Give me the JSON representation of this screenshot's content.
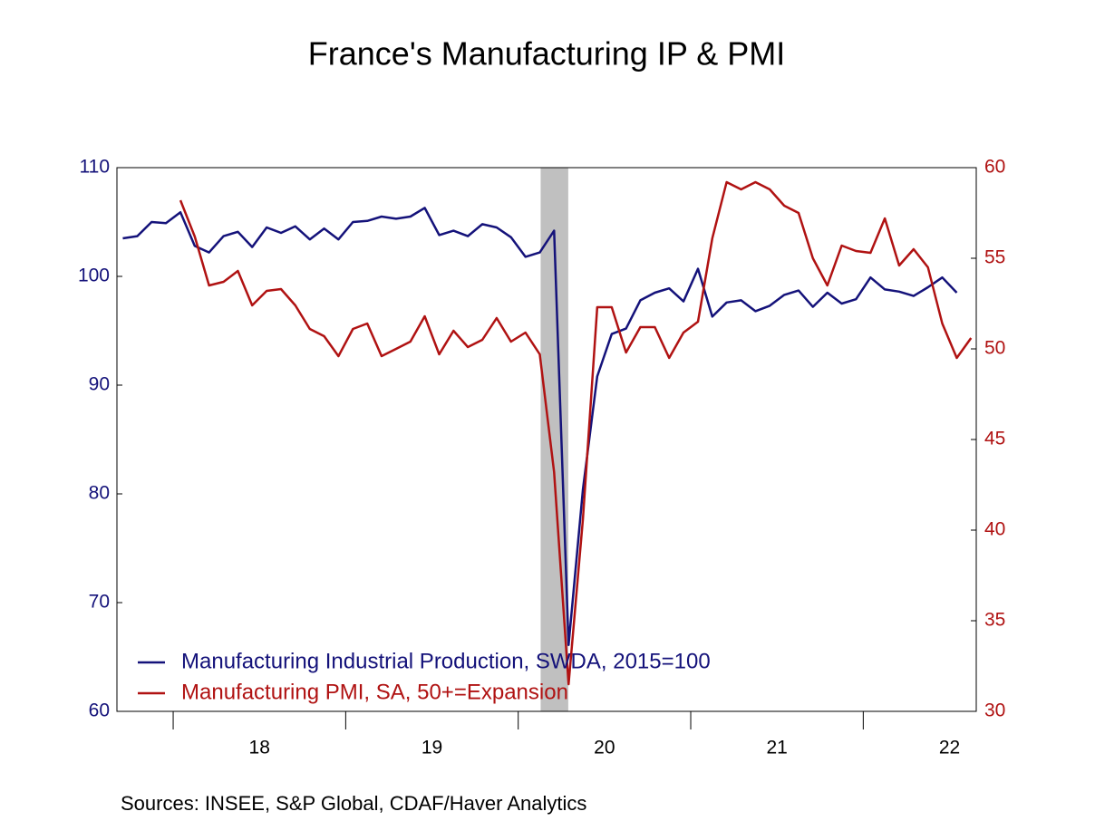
{
  "chart_data": {
    "type": "line",
    "title": "France's Manufacturing IP & PMI",
    "source": "Sources:   INSEE, S&P Global, CDAF/Haver Analytics",
    "xlim": [
      17.674,
      22.655
    ],
    "xticks": [
      {
        "value": 18.5,
        "label": "18"
      },
      {
        "value": 19.5,
        "label": "19"
      },
      {
        "value": 20.5,
        "label": "20"
      },
      {
        "value": 21.5,
        "label": "21"
      },
      {
        "value": 22.5,
        "label": "22"
      }
    ],
    "xtick_marks": [
      18,
      19,
      20,
      21,
      22
    ],
    "shade_x": [
      20.13,
      20.29
    ],
    "shade_color": "#c0c0c0",
    "ylim": [
      60,
      110
    ],
    "yticks": [
      60,
      70,
      80,
      90,
      100,
      110
    ],
    "y2lim": [
      30,
      60
    ],
    "y2ticks": [
      30,
      35,
      40,
      45,
      50,
      55,
      60
    ],
    "legend": "lower-left",
    "series": [
      {
        "name": "Manufacturing Industrial Production, SWDA, 2015=100",
        "color": "#14127a",
        "x": [
          17.708,
          17.792,
          17.875,
          17.958,
          18.042,
          18.125,
          18.208,
          18.292,
          18.375,
          18.458,
          18.542,
          18.625,
          18.708,
          18.792,
          18.875,
          18.958,
          19.042,
          19.125,
          19.208,
          19.292,
          19.375,
          19.458,
          19.542,
          19.625,
          19.708,
          19.792,
          19.875,
          19.958,
          20.042,
          20.125,
          20.208,
          20.292,
          20.375,
          20.458,
          20.542,
          20.625,
          20.708,
          20.792,
          20.875,
          20.958,
          21.042,
          21.125,
          21.208,
          21.292,
          21.375,
          21.458,
          21.542,
          21.625,
          21.708,
          21.792,
          21.875,
          21.958,
          22.042,
          22.125,
          22.208,
          22.292,
          22.375,
          22.458,
          22.542
        ],
        "values": [
          103.5,
          103.7,
          105.0,
          104.9,
          105.9,
          102.8,
          102.2,
          103.7,
          104.1,
          102.7,
          104.5,
          104.0,
          104.6,
          103.4,
          104.4,
          103.4,
          105.0,
          105.1,
          105.5,
          105.3,
          105.5,
          106.3,
          103.8,
          104.2,
          103.7,
          104.8,
          104.5,
          103.6,
          101.8,
          102.2,
          104.2,
          66.1,
          80.4,
          90.8,
          94.7,
          95.2,
          97.8,
          98.5,
          98.9,
          97.7,
          100.7,
          96.3,
          97.6,
          97.8,
          96.8,
          97.3,
          98.3,
          98.7,
          97.2,
          98.5,
          97.5,
          97.9,
          99.9,
          98.8,
          98.6,
          98.2,
          99.0,
          99.9,
          98.5
        ]
      },
      {
        "name": "Manufacturing PMI, SA, 50+=Expansion",
        "color": "#b01212",
        "axis": "y2",
        "x": [
          18.042,
          18.125,
          18.208,
          18.292,
          18.375,
          18.458,
          18.542,
          18.625,
          18.708,
          18.792,
          18.875,
          18.958,
          19.042,
          19.125,
          19.208,
          19.292,
          19.375,
          19.458,
          19.542,
          19.625,
          19.708,
          19.792,
          19.875,
          19.958,
          20.042,
          20.125,
          20.208,
          20.292,
          20.375,
          20.458,
          20.542,
          20.625,
          20.708,
          20.792,
          20.875,
          20.958,
          21.042,
          21.125,
          21.208,
          21.292,
          21.375,
          21.458,
          21.542,
          21.625,
          21.708,
          21.792,
          21.875,
          21.958,
          22.042,
          22.125,
          22.208,
          22.292,
          22.375,
          22.458,
          22.542,
          22.625
        ],
        "values": [
          58.2,
          56.2,
          53.5,
          53.7,
          54.3,
          52.4,
          53.2,
          53.3,
          52.4,
          51.1,
          50.7,
          49.6,
          51.1,
          51.4,
          49.6,
          50.0,
          50.4,
          51.8,
          49.7,
          51.0,
          50.1,
          50.5,
          51.7,
          50.4,
          50.9,
          49.7,
          43.2,
          31.5,
          40.6,
          52.3,
          52.3,
          49.8,
          51.2,
          51.2,
          49.5,
          50.9,
          51.5,
          56.1,
          59.2,
          58.8,
          59.2,
          58.8,
          57.9,
          57.5,
          55.0,
          53.5,
          55.7,
          55.4,
          55.3,
          57.2,
          54.6,
          55.5,
          54.5,
          51.4,
          49.5,
          50.6
        ]
      }
    ]
  }
}
